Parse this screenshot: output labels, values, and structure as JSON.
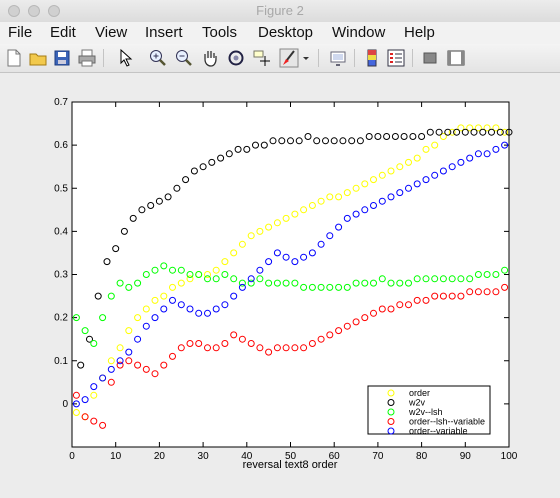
{
  "window": {
    "title": "Figure 2"
  },
  "menu": [
    "File",
    "Edit",
    "View",
    "Insert",
    "Tools",
    "Desktop",
    "Window",
    "Help"
  ],
  "toolbar": [
    {
      "name": "new-figure-icon"
    },
    {
      "name": "open-file-icon"
    },
    {
      "name": "save-icon"
    },
    {
      "name": "print-icon"
    },
    {
      "name": "pointer-icon"
    },
    {
      "name": "zoom-in-icon"
    },
    {
      "name": "zoom-out-icon"
    },
    {
      "name": "pan-hand-icon"
    },
    {
      "name": "rotate-3d-icon"
    },
    {
      "name": "data-cursor-icon"
    },
    {
      "name": "brush-icon"
    },
    {
      "name": "brush-dropdown-icon"
    },
    {
      "name": "link-plot-icon"
    },
    {
      "name": "colorbar-icon"
    },
    {
      "name": "legend-icon"
    },
    {
      "name": "hide-plot-tools-icon"
    },
    {
      "name": "show-plot-tools-icon"
    }
  ],
  "chart_data": {
    "type": "scatter",
    "xlabel": "reversal text8 order",
    "ylabel": "",
    "xlim": [
      0,
      100
    ],
    "ylim": [
      -0.1,
      0.7
    ],
    "xticks": [
      "0",
      "10",
      "20",
      "30",
      "40",
      "50",
      "60",
      "70",
      "80",
      "90",
      "100"
    ],
    "yticks": [
      "0",
      "0.1",
      "0.2",
      "0.3",
      "0.4",
      "0.5",
      "0.6",
      "0.7"
    ],
    "legend_position": "bottom-right",
    "series": [
      {
        "name": "order",
        "color": "#ffff00",
        "points": [
          [
            1,
            -0.02
          ],
          [
            3,
            -0.03
          ],
          [
            5,
            0.02
          ],
          [
            7,
            0.06
          ],
          [
            9,
            0.1
          ],
          [
            11,
            0.13
          ],
          [
            13,
            0.17
          ],
          [
            15,
            0.2
          ],
          [
            17,
            0.22
          ],
          [
            19,
            0.24
          ],
          [
            21,
            0.25
          ],
          [
            23,
            0.27
          ],
          [
            25,
            0.28
          ],
          [
            27,
            0.29
          ],
          [
            29,
            0.3
          ],
          [
            31,
            0.3
          ],
          [
            33,
            0.31
          ],
          [
            35,
            0.33
          ],
          [
            37,
            0.35
          ],
          [
            39,
            0.37
          ],
          [
            41,
            0.39
          ],
          [
            43,
            0.4
          ],
          [
            45,
            0.41
          ],
          [
            47,
            0.42
          ],
          [
            49,
            0.43
          ],
          [
            51,
            0.44
          ],
          [
            53,
            0.45
          ],
          [
            55,
            0.46
          ],
          [
            57,
            0.47
          ],
          [
            59,
            0.48
          ],
          [
            61,
            0.48
          ],
          [
            63,
            0.49
          ],
          [
            65,
            0.5
          ],
          [
            67,
            0.51
          ],
          [
            69,
            0.52
          ],
          [
            71,
            0.53
          ],
          [
            73,
            0.54
          ],
          [
            75,
            0.55
          ],
          [
            77,
            0.56
          ],
          [
            79,
            0.57
          ],
          [
            81,
            0.59
          ],
          [
            83,
            0.6
          ],
          [
            85,
            0.62
          ],
          [
            87,
            0.63
          ],
          [
            89,
            0.64
          ],
          [
            91,
            0.64
          ],
          [
            93,
            0.64
          ],
          [
            95,
            0.64
          ],
          [
            97,
            0.64
          ],
          [
            99,
            0.63
          ]
        ]
      },
      {
        "name": "w2v",
        "color": "#000000",
        "points": [
          [
            2,
            0.09
          ],
          [
            4,
            0.15
          ],
          [
            6,
            0.25
          ],
          [
            8,
            0.33
          ],
          [
            10,
            0.36
          ],
          [
            12,
            0.4
          ],
          [
            14,
            0.43
          ],
          [
            16,
            0.45
          ],
          [
            18,
            0.46
          ],
          [
            20,
            0.47
          ],
          [
            22,
            0.48
          ],
          [
            24,
            0.5
          ],
          [
            26,
            0.52
          ],
          [
            28,
            0.54
          ],
          [
            30,
            0.55
          ],
          [
            32,
            0.56
          ],
          [
            34,
            0.57
          ],
          [
            36,
            0.58
          ],
          [
            38,
            0.59
          ],
          [
            40,
            0.59
          ],
          [
            42,
            0.6
          ],
          [
            44,
            0.6
          ],
          [
            46,
            0.61
          ],
          [
            48,
            0.61
          ],
          [
            50,
            0.61
          ],
          [
            52,
            0.61
          ],
          [
            54,
            0.62
          ],
          [
            56,
            0.61
          ],
          [
            58,
            0.61
          ],
          [
            60,
            0.61
          ],
          [
            62,
            0.61
          ],
          [
            64,
            0.61
          ],
          [
            66,
            0.61
          ],
          [
            68,
            0.62
          ],
          [
            70,
            0.62
          ],
          [
            72,
            0.62
          ],
          [
            74,
            0.62
          ],
          [
            76,
            0.62
          ],
          [
            78,
            0.62
          ],
          [
            80,
            0.62
          ],
          [
            82,
            0.63
          ],
          [
            84,
            0.63
          ],
          [
            86,
            0.63
          ],
          [
            88,
            0.63
          ],
          [
            90,
            0.63
          ],
          [
            92,
            0.63
          ],
          [
            94,
            0.63
          ],
          [
            96,
            0.63
          ],
          [
            98,
            0.63
          ],
          [
            100,
            0.63
          ]
        ]
      },
      {
        "name": "w2v--lsh",
        "color": "#00ff00",
        "points": [
          [
            1,
            0.2
          ],
          [
            3,
            0.17
          ],
          [
            5,
            0.14
          ],
          [
            7,
            0.2
          ],
          [
            9,
            0.25
          ],
          [
            11,
            0.28
          ],
          [
            13,
            0.27
          ],
          [
            15,
            0.28
          ],
          [
            17,
            0.3
          ],
          [
            19,
            0.31
          ],
          [
            21,
            0.32
          ],
          [
            23,
            0.31
          ],
          [
            25,
            0.31
          ],
          [
            27,
            0.3
          ],
          [
            29,
            0.3
          ],
          [
            31,
            0.29
          ],
          [
            33,
            0.29
          ],
          [
            35,
            0.3
          ],
          [
            37,
            0.29
          ],
          [
            39,
            0.28
          ],
          [
            41,
            0.28
          ],
          [
            43,
            0.29
          ],
          [
            45,
            0.28
          ],
          [
            47,
            0.28
          ],
          [
            49,
            0.28
          ],
          [
            51,
            0.28
          ],
          [
            53,
            0.27
          ],
          [
            55,
            0.27
          ],
          [
            57,
            0.27
          ],
          [
            59,
            0.27
          ],
          [
            61,
            0.27
          ],
          [
            63,
            0.27
          ],
          [
            65,
            0.28
          ],
          [
            67,
            0.28
          ],
          [
            69,
            0.28
          ],
          [
            71,
            0.29
          ],
          [
            73,
            0.28
          ],
          [
            75,
            0.28
          ],
          [
            77,
            0.28
          ],
          [
            79,
            0.29
          ],
          [
            81,
            0.29
          ],
          [
            83,
            0.29
          ],
          [
            85,
            0.29
          ],
          [
            87,
            0.29
          ],
          [
            89,
            0.29
          ],
          [
            91,
            0.29
          ],
          [
            93,
            0.3
          ],
          [
            95,
            0.3
          ],
          [
            97,
            0.3
          ],
          [
            99,
            0.31
          ]
        ]
      },
      {
        "name": "order--lsh--variable",
        "color": "#ff0000",
        "points": [
          [
            1,
            0.02
          ],
          [
            3,
            -0.03
          ],
          [
            5,
            -0.04
          ],
          [
            7,
            -0.05
          ],
          [
            9,
            0.05
          ],
          [
            11,
            0.09
          ],
          [
            13,
            0.1
          ],
          [
            15,
            0.09
          ],
          [
            17,
            0.08
          ],
          [
            19,
            0.07
          ],
          [
            21,
            0.09
          ],
          [
            23,
            0.11
          ],
          [
            25,
            0.13
          ],
          [
            27,
            0.14
          ],
          [
            29,
            0.14
          ],
          [
            31,
            0.13
          ],
          [
            33,
            0.13
          ],
          [
            35,
            0.14
          ],
          [
            37,
            0.16
          ],
          [
            39,
            0.15
          ],
          [
            41,
            0.14
          ],
          [
            43,
            0.13
          ],
          [
            45,
            0.12
          ],
          [
            47,
            0.13
          ],
          [
            49,
            0.13
          ],
          [
            51,
            0.13
          ],
          [
            53,
            0.13
          ],
          [
            55,
            0.14
          ],
          [
            57,
            0.15
          ],
          [
            59,
            0.16
          ],
          [
            61,
            0.17
          ],
          [
            63,
            0.18
          ],
          [
            65,
            0.19
          ],
          [
            67,
            0.2
          ],
          [
            69,
            0.21
          ],
          [
            71,
            0.22
          ],
          [
            73,
            0.22
          ],
          [
            75,
            0.23
          ],
          [
            77,
            0.23
          ],
          [
            79,
            0.24
          ],
          [
            81,
            0.24
          ],
          [
            83,
            0.25
          ],
          [
            85,
            0.25
          ],
          [
            87,
            0.25
          ],
          [
            89,
            0.25
          ],
          [
            91,
            0.26
          ],
          [
            93,
            0.26
          ],
          [
            95,
            0.26
          ],
          [
            97,
            0.26
          ],
          [
            99,
            0.27
          ]
        ]
      },
      {
        "name": "order--variable",
        "color": "#0000ff",
        "points": [
          [
            1,
            0.0
          ],
          [
            3,
            0.01
          ],
          [
            5,
            0.04
          ],
          [
            7,
            0.06
          ],
          [
            9,
            0.08
          ],
          [
            11,
            0.1
          ],
          [
            13,
            0.12
          ],
          [
            15,
            0.15
          ],
          [
            17,
            0.18
          ],
          [
            19,
            0.2
          ],
          [
            21,
            0.22
          ],
          [
            23,
            0.24
          ],
          [
            25,
            0.23
          ],
          [
            27,
            0.22
          ],
          [
            29,
            0.21
          ],
          [
            31,
            0.21
          ],
          [
            33,
            0.22
          ],
          [
            35,
            0.23
          ],
          [
            37,
            0.25
          ],
          [
            39,
            0.27
          ],
          [
            41,
            0.29
          ],
          [
            43,
            0.31
          ],
          [
            45,
            0.33
          ],
          [
            47,
            0.35
          ],
          [
            49,
            0.34
          ],
          [
            51,
            0.33
          ],
          [
            53,
            0.34
          ],
          [
            55,
            0.35
          ],
          [
            57,
            0.37
          ],
          [
            59,
            0.39
          ],
          [
            61,
            0.41
          ],
          [
            63,
            0.43
          ],
          [
            65,
            0.44
          ],
          [
            67,
            0.45
          ],
          [
            69,
            0.46
          ],
          [
            71,
            0.47
          ],
          [
            73,
            0.48
          ],
          [
            75,
            0.49
          ],
          [
            77,
            0.5
          ],
          [
            79,
            0.51
          ],
          [
            81,
            0.52
          ],
          [
            83,
            0.53
          ],
          [
            85,
            0.54
          ],
          [
            87,
            0.55
          ],
          [
            89,
            0.56
          ],
          [
            91,
            0.57
          ],
          [
            93,
            0.58
          ],
          [
            95,
            0.58
          ],
          [
            97,
            0.59
          ],
          [
            99,
            0.6
          ]
        ]
      }
    ]
  }
}
